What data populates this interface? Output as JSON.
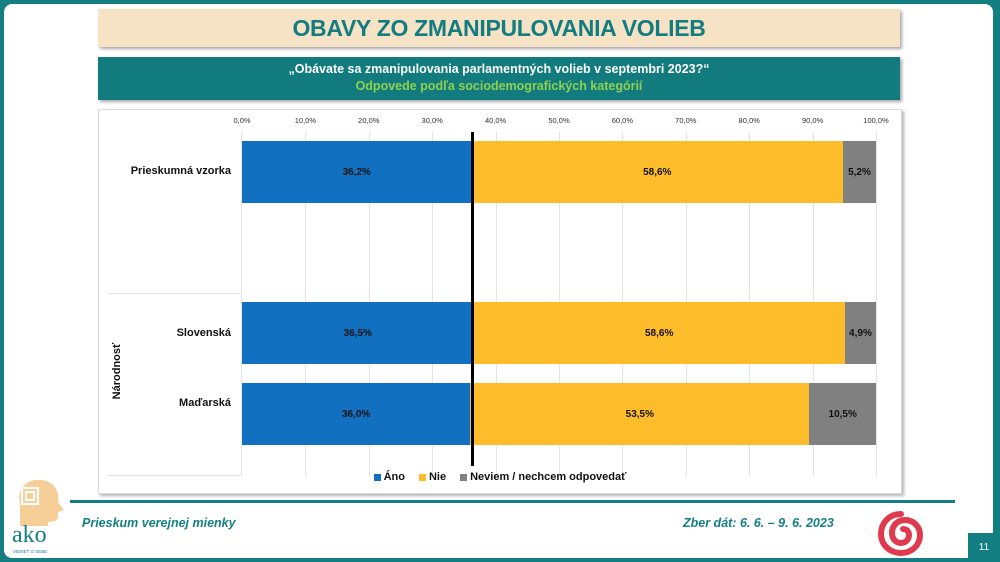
{
  "slide": {
    "title": "OBAVY ZO ZMANIPULOVANIA VOLIEB",
    "question": "„Obávate sa zmanipulovania parlamentných volieb v septembri 2023?“",
    "subtitle": "Odpovede podľa sociodemografických kategórií",
    "page_number": "11"
  },
  "footer": {
    "left_text": "Prieskum verejnej mienky",
    "right_text": "Zber dát: 6. 6. – 9. 6. 2023",
    "logo_text": "ako",
    "logo_tagline": "VEDIEŤ O SEBE"
  },
  "colors": {
    "ano": "#1170c0",
    "nie": "#fdbd2a",
    "neviem": "#808080",
    "brand_teal": "#137f83",
    "title_bg": "#f6e2c5"
  },
  "chart_data": {
    "type": "bar",
    "orientation": "horizontal",
    "stacked": true,
    "title": "„Obávate sa zmanipulovania parlamentných volieb v septembri 2023?“",
    "subtitle": "Odpovede podľa sociodemografických kategórií",
    "xlabel": "",
    "ylabel": "",
    "xlim": [
      0,
      100
    ],
    "x_ticks": [
      "0,0%",
      "10,0%",
      "20,0%",
      "30,0%",
      "40,0%",
      "50,0%",
      "60,0%",
      "70,0%",
      "80,0%",
      "90,0%",
      "100,0%"
    ],
    "grid": true,
    "legend_position": "bottom",
    "reference_line_x": 36.2,
    "categories": [
      "Prieskumná vzorka",
      "Slovenská",
      "Maďarská"
    ],
    "category_groups": [
      {
        "name": "",
        "categories": [
          "Prieskumná vzorka"
        ]
      },
      {
        "name": "Národnosť",
        "categories": [
          "Slovenská",
          "Maďarská"
        ]
      }
    ],
    "series": [
      {
        "name": "Áno",
        "color": "#1170c0",
        "values": [
          36.2,
          36.5,
          36.0
        ],
        "labels": [
          "36,2%",
          "36,5%",
          "36,0%"
        ]
      },
      {
        "name": "Nie",
        "color": "#fdbd2a",
        "values": [
          58.6,
          58.6,
          53.5
        ],
        "labels": [
          "58,6%",
          "58,6%",
          "53,5%"
        ]
      },
      {
        "name": "Neviem / nechcem odpovedať",
        "color": "#808080",
        "values": [
          5.2,
          4.9,
          10.5
        ],
        "labels": [
          "5,2%",
          "4,9%",
          "10,5%"
        ]
      }
    ]
  },
  "legend": [
    "Áno",
    "Nie",
    "Neviem / nechcem odpovedať"
  ]
}
